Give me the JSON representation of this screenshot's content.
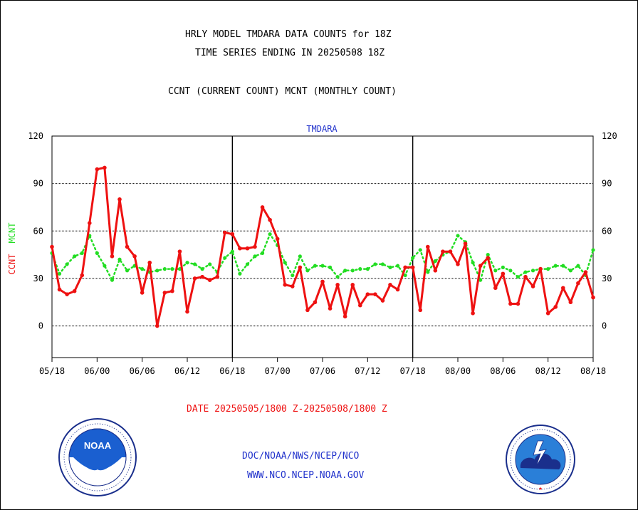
{
  "header": {
    "line1": "HRLY MODEL TMDARA DATA COUNTS for 18Z",
    "line2": "TIME SERIES ENDING IN 20250508 18Z",
    "line3": "CCNT (CURRENT COUNT) MCNT (MONTHLY COUNT)"
  },
  "footer": {
    "date_range": "DATE 20250505/1800 Z-20250508/1800 Z",
    "org": "DOC/NOAA/NWS/NCEP/NCO",
    "url": "WWW.NCO.NCEP.NOAA.GOV"
  },
  "logos": {
    "left": {
      "icon": "noaa-logo",
      "text": "NOAA",
      "ring_text": "NATIONAL OCEANIC AND ATMOSPHERIC ADMINISTRATION · U.S. DEPARTMENT OF COMMERCE"
    },
    "right": {
      "icon": "nws-logo",
      "ring_text": "NATIONAL WEATHER SERVICE"
    }
  },
  "colors": {
    "ccnt": "#ee1111",
    "mcnt": "#22dd22",
    "title_blue": "#2233cc",
    "date_red": "#ee1111"
  },
  "chart_data": {
    "type": "line",
    "title": "TMDARA",
    "ylabel_ccnt": "CCNT",
    "ylabel_mcnt": "MCNT",
    "ylim": [
      -20,
      120
    ],
    "yticks": [
      0,
      30,
      60,
      90,
      120
    ],
    "xticks": [
      "05/18",
      "06/00",
      "06/06",
      "06/12",
      "06/18",
      "07/00",
      "07/06",
      "07/12",
      "07/18",
      "08/00",
      "08/06",
      "08/12",
      "08/18"
    ],
    "grid": true,
    "series": [
      {
        "name": "CCNT",
        "color": "#ee1111",
        "values": [
          50,
          23,
          20,
          22,
          32,
          65,
          99,
          100,
          44,
          80,
          50,
          44,
          21,
          40,
          0,
          21,
          22,
          47,
          9,
          30,
          31,
          29,
          31,
          59,
          58,
          49,
          49,
          50,
          75,
          67,
          55,
          26,
          25,
          37,
          10,
          15,
          28,
          11,
          26,
          6,
          26,
          13,
          20,
          20,
          16,
          26,
          23,
          37,
          37,
          10,
          50,
          35,
          47,
          47,
          39,
          52,
          8,
          38,
          43,
          24,
          33,
          14,
          14,
          31,
          25,
          36,
          8,
          12,
          24,
          15,
          27,
          34,
          18
        ]
      },
      {
        "name": "MCNT",
        "color": "#22dd22",
        "values": [
          46,
          33,
          39,
          44,
          46,
          57,
          46,
          38,
          29,
          42,
          35,
          38,
          36,
          34,
          35,
          36,
          36,
          36,
          40,
          39,
          36,
          39,
          34,
          43,
          47,
          33,
          39,
          44,
          46,
          58,
          51,
          40,
          32,
          44,
          35,
          38,
          38,
          37,
          31,
          35,
          35,
          36,
          36,
          39,
          39,
          37,
          38,
          32,
          43,
          48,
          34,
          41,
          45,
          47,
          57,
          53,
          40,
          29,
          45,
          35,
          37,
          35,
          31,
          34,
          35,
          36,
          36,
          38,
          38,
          35,
          38,
          32,
          48
        ]
      }
    ]
  }
}
